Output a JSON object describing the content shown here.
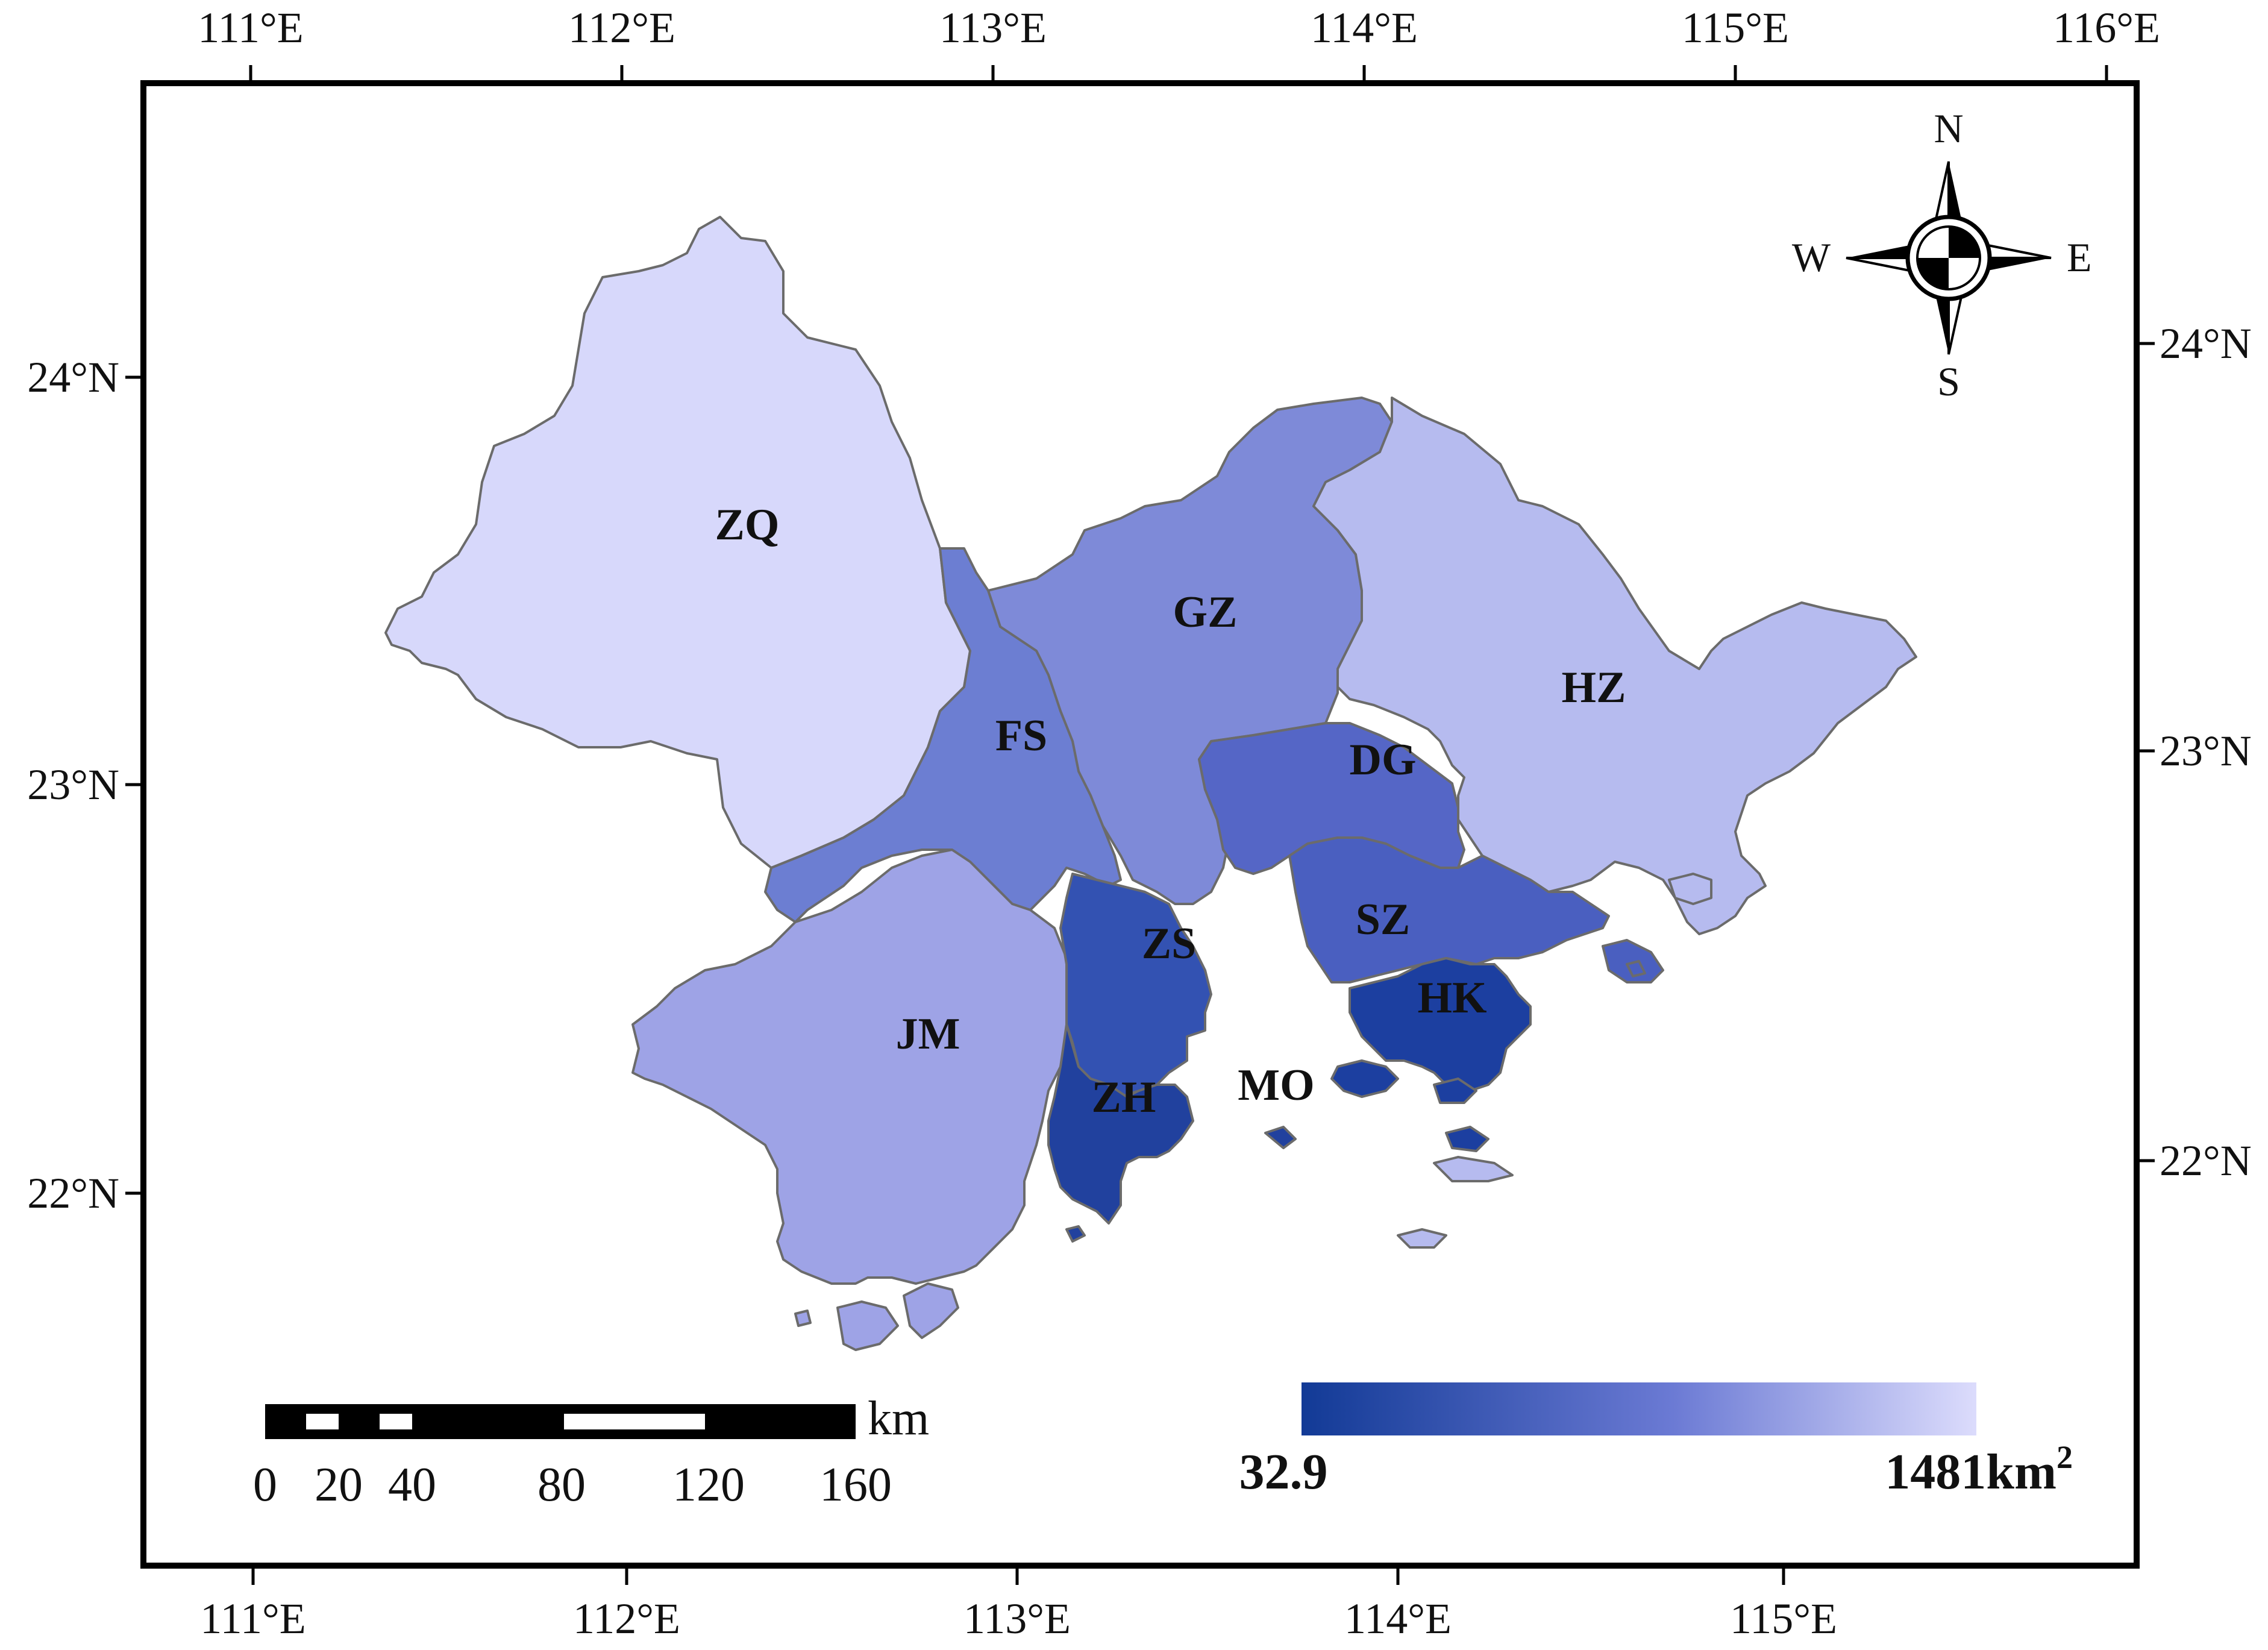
{
  "map": {
    "longitude_ticks": [
      "111°E",
      "112°E",
      "113°E",
      "114°E",
      "115°E",
      "116°E"
    ],
    "longitude_ticks_bottom": [
      "111°E",
      "112°E",
      "113°E",
      "114°E",
      "115°E"
    ],
    "latitude_ticks_left": [
      "24°N",
      "23°N",
      "22°N"
    ],
    "latitude_ticks_right": [
      "24°N",
      "23°N",
      "22°N"
    ]
  },
  "regions": [
    {
      "code": "ZQ",
      "color": "#d7d8fb"
    },
    {
      "code": "GZ",
      "color": "#7e8ad8"
    },
    {
      "code": "HZ",
      "color": "#b6bbef"
    },
    {
      "code": "FS",
      "color": "#6c7ed2"
    },
    {
      "code": "DG",
      "color": "#5566c6"
    },
    {
      "code": "JM",
      "color": "#9ea3e6"
    },
    {
      "code": "ZS",
      "color": "#3352b2"
    },
    {
      "code": "SZ",
      "color": "#4a5fc0"
    },
    {
      "code": "HK",
      "color": "#1c3fa0"
    },
    {
      "code": "ZH",
      "color": "#21419e"
    },
    {
      "code": "MO",
      "color": "#ffffff"
    }
  ],
  "compass": {
    "n": "N",
    "s": "S",
    "e": "E",
    "w": "W"
  },
  "scale_bar": {
    "unit": "km",
    "labels": [
      "0",
      "20",
      "40",
      "80",
      "120",
      "160"
    ]
  },
  "legend": {
    "min_label": "32.9",
    "max_label": "1481km",
    "max_unit_superscript": "2",
    "color_low": "#123a96",
    "color_high": "#dcdcfc"
  }
}
